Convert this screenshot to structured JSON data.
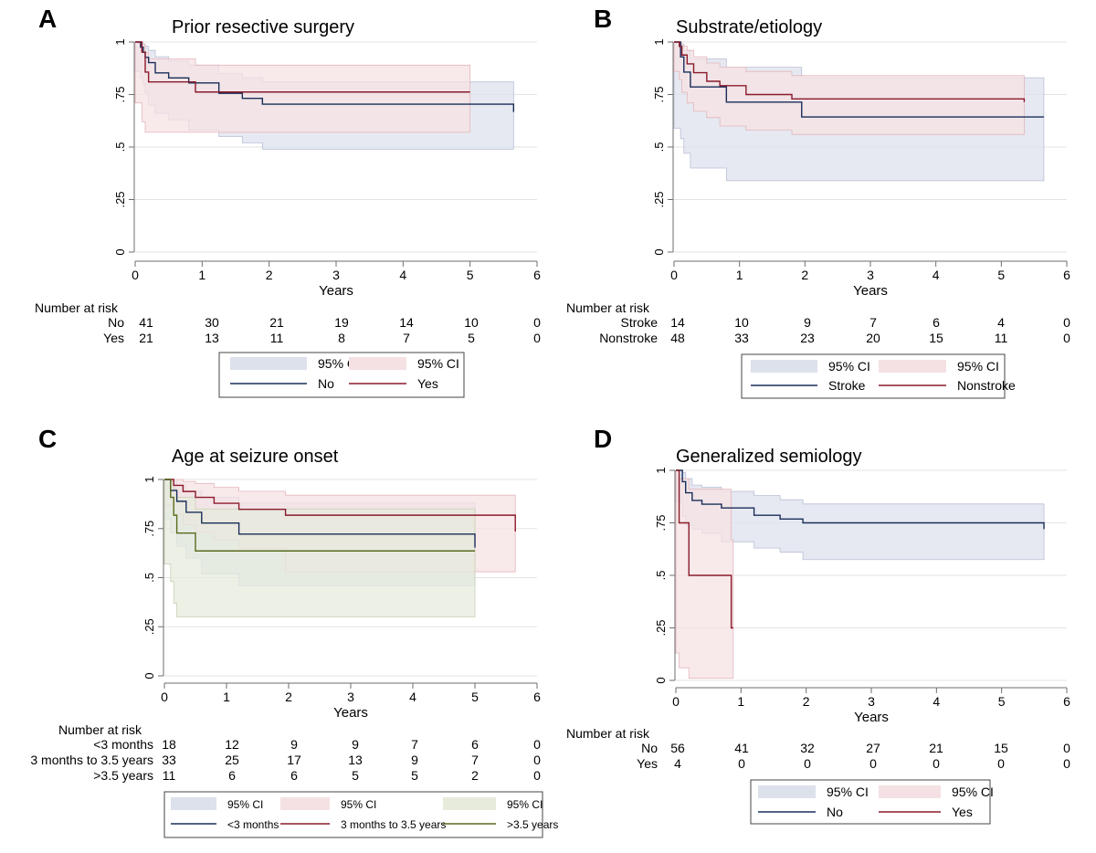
{
  "colors": {
    "navy": "#1a2e5a",
    "maroon": "#8b1a2b",
    "olive": "#5a6a1e",
    "ci_blue": "#dde1ec",
    "ci_pink": "#f5e1e3",
    "ci_green": "#e6ebdc",
    "grid": "#e3e3e3",
    "axis": "#6e6e6e"
  },
  "chart_data": [
    {
      "type": "line",
      "panel_letter": "A",
      "title": "Prior resective surgery",
      "xlabel": "Years",
      "xlim": [
        0,
        6
      ],
      "ylim": [
        0,
        1
      ],
      "xticks": [
        "0",
        "1",
        "2",
        "3",
        "4",
        "5",
        "6"
      ],
      "yticks": [
        "0",
        ".25",
        ".5",
        ".75",
        "1"
      ],
      "grid": true,
      "series": [
        {
          "name": "No",
          "color_key": "navy",
          "ci_key": "ci_blue",
          "x": [
            0,
            0.08,
            0.12,
            0.15,
            0.2,
            0.3,
            0.5,
            0.8,
            1.25,
            1.6,
            1.9,
            5.65
          ],
          "y": [
            1,
            0.976,
            0.951,
            0.927,
            0.902,
            0.853,
            0.829,
            0.805,
            0.756,
            0.732,
            0.704,
            0.667
          ],
          "lower": [
            1,
            0.86,
            0.83,
            0.8,
            0.76,
            0.7,
            0.66,
            0.63,
            0.58,
            0.55,
            0.52,
            0.49
          ],
          "upper": [
            1,
            1,
            0.99,
            0.98,
            0.96,
            0.93,
            0.91,
            0.89,
            0.85,
            0.83,
            0.81,
            0.79
          ]
        },
        {
          "name": "Yes",
          "color_key": "maroon",
          "ci_key": "ci_pink",
          "x": [
            0,
            0.1,
            0.15,
            0.2,
            0.9,
            5.0
          ],
          "y": [
            1,
            0.952,
            0.857,
            0.81,
            0.762,
            0.762
          ],
          "lower": [
            1,
            0.71,
            0.62,
            0.57,
            0.57,
            0.57
          ],
          "upper": [
            1,
            0.99,
            0.95,
            0.92,
            0.89,
            0.89
          ]
        }
      ],
      "risk_table": {
        "heading": "Number at risk",
        "rows": [
          {
            "label": "No",
            "values": [
              "41",
              "30",
              "21",
              "19",
              "14",
              "10",
              "0"
            ]
          },
          {
            "label": "Yes",
            "values": [
              "21",
              "13",
              "11",
              "8",
              "7",
              "5",
              "0"
            ]
          }
        ]
      },
      "legend": {
        "placement": "below",
        "items": [
          {
            "kind": "ci",
            "label": "95% CI",
            "color_key": "ci_blue"
          },
          {
            "kind": "ci",
            "label": "95% CI",
            "color_key": "ci_pink"
          },
          {
            "kind": "line",
            "label": "No",
            "color_key": "navy"
          },
          {
            "kind": "line",
            "label": "Yes",
            "color_key": "maroon"
          }
        ]
      }
    },
    {
      "type": "line",
      "panel_letter": "B",
      "title": "Substrate/etiology",
      "xlabel": "Years",
      "xlim": [
        0,
        6
      ],
      "ylim": [
        0,
        1
      ],
      "xticks": [
        "0",
        "1",
        "2",
        "3",
        "4",
        "5",
        "6"
      ],
      "yticks": [
        "0",
        ".25",
        ".5",
        ".75",
        "1"
      ],
      "grid": true,
      "series": [
        {
          "name": "Stroke",
          "color_key": "navy",
          "ci_key": "ci_blue",
          "x": [
            0,
            0.1,
            0.15,
            0.25,
            0.8,
            1.95,
            5.65
          ],
          "y": [
            1,
            0.929,
            0.857,
            0.786,
            0.714,
            0.643,
            0.643
          ],
          "lower": [
            1,
            0.59,
            0.54,
            0.47,
            0.4,
            0.34,
            0.34
          ],
          "upper": [
            1,
            0.99,
            0.96,
            0.92,
            0.88,
            0.83,
            0.83
          ]
        },
        {
          "name": "Nonstroke",
          "color_key": "maroon",
          "ci_key": "ci_pink",
          "x": [
            0,
            0.08,
            0.12,
            0.2,
            0.3,
            0.5,
            0.7,
            1.1,
            1.8,
            5.35
          ],
          "y": [
            1,
            0.979,
            0.938,
            0.896,
            0.854,
            0.813,
            0.792,
            0.75,
            0.729,
            0.714
          ],
          "lower": [
            1,
            0.86,
            0.82,
            0.76,
            0.71,
            0.67,
            0.64,
            0.6,
            0.58,
            0.56
          ],
          "upper": [
            1,
            1,
            0.98,
            0.96,
            0.93,
            0.9,
            0.88,
            0.86,
            0.84,
            0.82
          ]
        }
      ],
      "risk_table": {
        "heading": "Number at risk",
        "rows": [
          {
            "label": "Stroke",
            "values": [
              "14",
              "10",
              "9",
              "7",
              "6",
              "4",
              "0"
            ]
          },
          {
            "label": "Nonstroke",
            "values": [
              "48",
              "33",
              "23",
              "20",
              "15",
              "11",
              "0"
            ]
          }
        ]
      },
      "legend": {
        "placement": "below",
        "items": [
          {
            "kind": "ci",
            "label": "95% CI",
            "color_key": "ci_blue"
          },
          {
            "kind": "ci",
            "label": "95% CI",
            "color_key": "ci_pink"
          },
          {
            "kind": "line",
            "label": "Stroke",
            "color_key": "navy"
          },
          {
            "kind": "line",
            "label": "Nonstroke",
            "color_key": "maroon"
          }
        ]
      }
    },
    {
      "type": "line",
      "panel_letter": "C",
      "title": "Age at seizure onset",
      "xlabel": "Years",
      "xlim": [
        0,
        6
      ],
      "ylim": [
        0,
        1
      ],
      "xticks": [
        "0",
        "1",
        "2",
        "3",
        "4",
        "5",
        "6"
      ],
      "yticks": [
        "0",
        ".25",
        ".5",
        ".75",
        "1"
      ],
      "grid": true,
      "series": [
        {
          "name": "<3 months",
          "color_key": "navy",
          "ci_key": "ci_blue",
          "x": [
            0,
            0.1,
            0.2,
            0.35,
            0.6,
            1.2,
            5.0
          ],
          "y": [
            1,
            0.944,
            0.889,
            0.833,
            0.778,
            0.722,
            0.653
          ],
          "lower": [
            1,
            0.8,
            0.73,
            0.66,
            0.6,
            0.52,
            0.46
          ],
          "upper": [
            1,
            0.99,
            0.97,
            0.94,
            0.91,
            0.88,
            0.85
          ]
        },
        {
          "name": "3 months to 3.5 years",
          "color_key": "maroon",
          "ci_key": "ci_pink",
          "x": [
            0,
            0.15,
            0.3,
            0.5,
            0.8,
            1.2,
            1.95,
            5.65
          ],
          "y": [
            1,
            0.97,
            0.939,
            0.909,
            0.879,
            0.848,
            0.818,
            0.735
          ],
          "lower": [
            1,
            0.87,
            0.82,
            0.77,
            0.73,
            0.69,
            0.65,
            0.53
          ],
          "upper": [
            1,
            1,
            0.99,
            0.98,
            0.96,
            0.94,
            0.92,
            0.86
          ]
        },
        {
          "name": ">3.5 years",
          "color_key": "olive",
          "ci_key": "ci_green",
          "x": [
            0,
            0.1,
            0.15,
            0.2,
            0.5,
            5.0
          ],
          "y": [
            1,
            0.909,
            0.818,
            0.727,
            0.636,
            0.636
          ],
          "lower": [
            1,
            0.57,
            0.48,
            0.37,
            0.3,
            0.3
          ],
          "upper": [
            1,
            0.99,
            0.95,
            0.91,
            0.85,
            0.85
          ]
        }
      ],
      "risk_table": {
        "heading": "Number at risk",
        "rows": [
          {
            "label": "<3 months",
            "values": [
              "18",
              "12",
              "9",
              "9",
              "7",
              "6",
              "0"
            ]
          },
          {
            "label": "3 months to 3.5 years",
            "values": [
              "33",
              "25",
              "17",
              "13",
              "9",
              "7",
              "0"
            ]
          },
          {
            "label": ">3.5 years",
            "values": [
              "11",
              "6",
              "6",
              "5",
              "5",
              "2",
              "0"
            ]
          }
        ]
      },
      "legend": {
        "placement": "below",
        "items": [
          {
            "kind": "ci",
            "label": "95% CI",
            "color_key": "ci_blue"
          },
          {
            "kind": "ci",
            "label": "95% CI",
            "color_key": "ci_pink"
          },
          {
            "kind": "ci",
            "label": "95% CI",
            "color_key": "ci_green"
          },
          {
            "kind": "line",
            "label": "<3 months",
            "color_key": "navy"
          },
          {
            "kind": "line",
            "label": "3 months to 3.5 years",
            "color_key": "maroon"
          },
          {
            "kind": "line",
            "label": ">3.5 years",
            "color_key": "olive"
          }
        ]
      }
    },
    {
      "type": "line",
      "panel_letter": "D",
      "title": "Generalized semiology",
      "xlabel": "Years",
      "xlim": [
        0,
        6
      ],
      "ylim": [
        0,
        1
      ],
      "xticks": [
        "0",
        "1",
        "2",
        "3",
        "4",
        "5",
        "6"
      ],
      "yticks": [
        "0",
        ".25",
        ".5",
        ".75",
        "1"
      ],
      "grid": true,
      "series": [
        {
          "name": "No",
          "color_key": "navy",
          "ci_key": "ci_blue",
          "x": [
            0,
            0.1,
            0.15,
            0.25,
            0.4,
            0.7,
            1.2,
            1.6,
            1.95,
            5.65
          ],
          "y": [
            1,
            0.946,
            0.893,
            0.857,
            0.839,
            0.821,
            0.786,
            0.768,
            0.75,
            0.72
          ],
          "lower": [
            1,
            0.85,
            0.78,
            0.74,
            0.72,
            0.7,
            0.66,
            0.63,
            0.61,
            0.575
          ],
          "upper": [
            1,
            0.99,
            0.96,
            0.93,
            0.92,
            0.9,
            0.88,
            0.86,
            0.84,
            0.82
          ]
        },
        {
          "name": "Yes",
          "color_key": "maroon",
          "ci_key": "ci_pink",
          "x": [
            0,
            0.05,
            0.2,
            0.85,
            0.88
          ],
          "y": [
            1,
            0.75,
            0.5,
            0.25,
            0.25
          ],
          "lower": [
            1,
            0.13,
            0.06,
            0.01,
            0.01
          ],
          "upper": [
            1,
            0.96,
            0.91,
            0.67,
            0.67
          ]
        }
      ],
      "risk_table": {
        "heading": "Number at risk",
        "rows": [
          {
            "label": "No",
            "values": [
              "56",
              "41",
              "32",
              "27",
              "21",
              "15",
              "0"
            ]
          },
          {
            "label": "Yes",
            "values": [
              "4",
              "0",
              "0",
              "0",
              "0",
              "0",
              "0"
            ]
          }
        ]
      },
      "legend": {
        "placement": "below",
        "items": [
          {
            "kind": "ci",
            "label": "95% CI",
            "color_key": "ci_blue"
          },
          {
            "kind": "ci",
            "label": "95% CI",
            "color_key": "ci_pink"
          },
          {
            "kind": "line",
            "label": "No",
            "color_key": "navy"
          },
          {
            "kind": "line",
            "label": "Yes",
            "color_key": "maroon"
          }
        ]
      }
    }
  ]
}
